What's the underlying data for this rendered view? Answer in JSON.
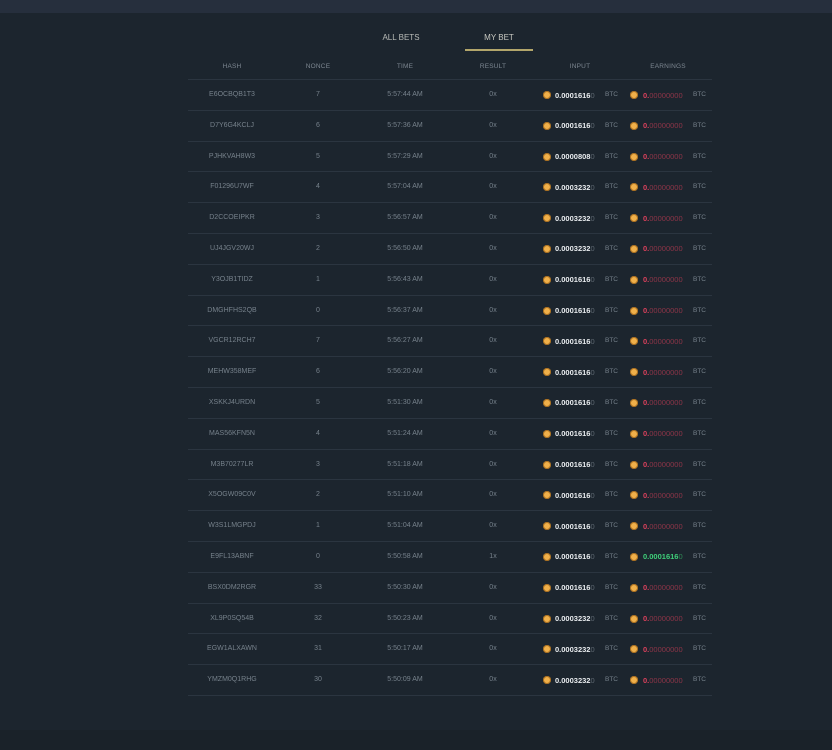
{
  "tabs": [
    {
      "label": "ALL BETS",
      "active": false
    },
    {
      "label": "MY BET",
      "active": true
    }
  ],
  "colors": {
    "accent": "#b3a66b",
    "loss": "#d9415c",
    "win": "#3fd07a",
    "coin": "#f0b04a",
    "background": "#1c252e"
  },
  "coin_icon": "bitcoin-coin-icon",
  "table": {
    "headers": {
      "hash": "HASH",
      "nonce": "NONCE",
      "time": "TIME",
      "result": "RESULT",
      "input": "INPUT",
      "earnings": "EARNINGS"
    },
    "rows": [
      {
        "hash": "E6OCBQB1T3",
        "nonce": "7",
        "time": "5:57:44 AM",
        "result": "0x",
        "input": "0.0001616",
        "input_tail": "0",
        "earnings": "0.",
        "earnings_tail": "00000000",
        "outcome": "loss",
        "unit": "BTC"
      },
      {
        "hash": "D7Y6G4KCLJ",
        "nonce": "6",
        "time": "5:57:36 AM",
        "result": "0x",
        "input": "0.0001616",
        "input_tail": "0",
        "earnings": "0.",
        "earnings_tail": "00000000",
        "outcome": "loss",
        "unit": "BTC"
      },
      {
        "hash": "PJHKVAH8W3",
        "nonce": "5",
        "time": "5:57:29 AM",
        "result": "0x",
        "input": "0.0000808",
        "input_tail": "0",
        "earnings": "0.",
        "earnings_tail": "00000000",
        "outcome": "loss",
        "unit": "BTC"
      },
      {
        "hash": "F01296U7WF",
        "nonce": "4",
        "time": "5:57:04 AM",
        "result": "0x",
        "input": "0.0003232",
        "input_tail": "0",
        "earnings": "0.",
        "earnings_tail": "00000000",
        "outcome": "loss",
        "unit": "BTC"
      },
      {
        "hash": "D2CCOEIPKR",
        "nonce": "3",
        "time": "5:56:57 AM",
        "result": "0x",
        "input": "0.0003232",
        "input_tail": "0",
        "earnings": "0.",
        "earnings_tail": "00000000",
        "outcome": "loss",
        "unit": "BTC"
      },
      {
        "hash": "UJ4JGV20WJ",
        "nonce": "2",
        "time": "5:56:50 AM",
        "result": "0x",
        "input": "0.0003232",
        "input_tail": "0",
        "earnings": "0.",
        "earnings_tail": "00000000",
        "outcome": "loss",
        "unit": "BTC"
      },
      {
        "hash": "Y3OJB1TIDZ",
        "nonce": "1",
        "time": "5:56:43 AM",
        "result": "0x",
        "input": "0.0001616",
        "input_tail": "0",
        "earnings": "0.",
        "earnings_tail": "00000000",
        "outcome": "loss",
        "unit": "BTC"
      },
      {
        "hash": "DMGHFHS2QB",
        "nonce": "0",
        "time": "5:56:37 AM",
        "result": "0x",
        "input": "0.0001616",
        "input_tail": "0",
        "earnings": "0.",
        "earnings_tail": "00000000",
        "outcome": "loss",
        "unit": "BTC"
      },
      {
        "hash": "VGCR12RCH7",
        "nonce": "7",
        "time": "5:56:27 AM",
        "result": "0x",
        "input": "0.0001616",
        "input_tail": "0",
        "earnings": "0.",
        "earnings_tail": "00000000",
        "outcome": "loss",
        "unit": "BTC"
      },
      {
        "hash": "MEHW358MEF",
        "nonce": "6",
        "time": "5:56:20 AM",
        "result": "0x",
        "input": "0.0001616",
        "input_tail": "0",
        "earnings": "0.",
        "earnings_tail": "00000000",
        "outcome": "loss",
        "unit": "BTC"
      },
      {
        "hash": "XSKKJ4URDN",
        "nonce": "5",
        "time": "5:51:30 AM",
        "result": "0x",
        "input": "0.0001616",
        "input_tail": "0",
        "earnings": "0.",
        "earnings_tail": "00000000",
        "outcome": "loss",
        "unit": "BTC"
      },
      {
        "hash": "MAS56KFN5N",
        "nonce": "4",
        "time": "5:51:24 AM",
        "result": "0x",
        "input": "0.0001616",
        "input_tail": "0",
        "earnings": "0.",
        "earnings_tail": "00000000",
        "outcome": "loss",
        "unit": "BTC"
      },
      {
        "hash": "M3B70277LR",
        "nonce": "3",
        "time": "5:51:18 AM",
        "result": "0x",
        "input": "0.0001616",
        "input_tail": "0",
        "earnings": "0.",
        "earnings_tail": "00000000",
        "outcome": "loss",
        "unit": "BTC"
      },
      {
        "hash": "X5OGW09C0V",
        "nonce": "2",
        "time": "5:51:10 AM",
        "result": "0x",
        "input": "0.0001616",
        "input_tail": "0",
        "earnings": "0.",
        "earnings_tail": "00000000",
        "outcome": "loss",
        "unit": "BTC"
      },
      {
        "hash": "W3S1LMGPDJ",
        "nonce": "1",
        "time": "5:51:04 AM",
        "result": "0x",
        "input": "0.0001616",
        "input_tail": "0",
        "earnings": "0.",
        "earnings_tail": "00000000",
        "outcome": "loss",
        "unit": "BTC"
      },
      {
        "hash": "E9FL13ABNF",
        "nonce": "0",
        "time": "5:50:58 AM",
        "result": "1x",
        "input": "0.0001616",
        "input_tail": "0",
        "earnings": "0.0001616",
        "earnings_tail": "0",
        "outcome": "win",
        "unit": "BTC"
      },
      {
        "hash": "BSX0DM2RGR",
        "nonce": "33",
        "time": "5:50:30 AM",
        "result": "0x",
        "input": "0.0001616",
        "input_tail": "0",
        "earnings": "0.",
        "earnings_tail": "00000000",
        "outcome": "loss",
        "unit": "BTC"
      },
      {
        "hash": "XL9P0SQ54B",
        "nonce": "32",
        "time": "5:50:23 AM",
        "result": "0x",
        "input": "0.0003232",
        "input_tail": "0",
        "earnings": "0.",
        "earnings_tail": "00000000",
        "outcome": "loss",
        "unit": "BTC"
      },
      {
        "hash": "EGW1ALXAWN",
        "nonce": "31",
        "time": "5:50:17 AM",
        "result": "0x",
        "input": "0.0003232",
        "input_tail": "0",
        "earnings": "0.",
        "earnings_tail": "00000000",
        "outcome": "loss",
        "unit": "BTC"
      },
      {
        "hash": "YMZM0Q1RHG",
        "nonce": "30",
        "time": "5:50:09 AM",
        "result": "0x",
        "input": "0.0003232",
        "input_tail": "0",
        "earnings": "0.",
        "earnings_tail": "00000000",
        "outcome": "loss",
        "unit": "BTC"
      }
    ]
  }
}
